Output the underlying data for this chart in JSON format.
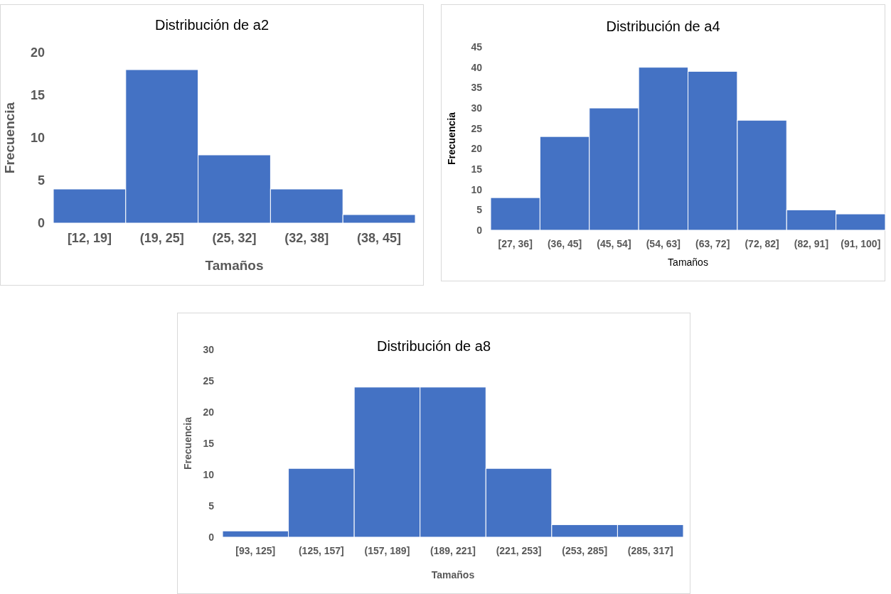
{
  "chart_data": [
    {
      "type": "bar",
      "title": "Distribución de a2",
      "xlabel": "Tamaños",
      "ylabel": "Frecuencia",
      "categories": [
        "[12, 19]",
        "(19, 25]",
        "(25, 32]",
        "(32, 38]",
        "(38, 45]"
      ],
      "values": [
        4,
        18,
        8,
        4,
        1
      ],
      "color": "#4472c4",
      "ylim": [
        0,
        20
      ],
      "yticks": [
        0,
        5,
        10,
        15,
        20
      ]
    },
    {
      "type": "bar",
      "title": "Distribución de a4",
      "xlabel": "Tamaños",
      "ylabel": "Frecuencia",
      "categories": [
        "[27, 36]",
        "(36, 45]",
        "(45, 54]",
        "(54, 63]",
        "(63, 72]",
        "(72, 82]",
        "(82, 91]",
        "(91, 100]"
      ],
      "values": [
        8,
        23,
        30,
        40,
        39,
        27,
        5,
        4
      ],
      "color": "#4472c4",
      "ylim": [
        0,
        45
      ],
      "yticks": [
        0,
        5,
        10,
        15,
        20,
        25,
        30,
        35,
        40,
        45
      ]
    },
    {
      "type": "bar",
      "title": "Distribución de a8",
      "xlabel": "Tamaños",
      "ylabel": "Frecuencia",
      "categories": [
        "[93, 125]",
        "(125, 157]",
        "(157, 189]",
        "(189, 221]",
        "(221, 253]",
        "(253, 285]",
        "(285, 317]"
      ],
      "values": [
        1,
        11,
        24,
        24,
        11,
        2,
        2
      ],
      "color": "#4472c4",
      "ylim": [
        0,
        30
      ],
      "yticks": [
        0,
        5,
        10,
        15,
        20,
        25,
        30
      ]
    }
  ]
}
